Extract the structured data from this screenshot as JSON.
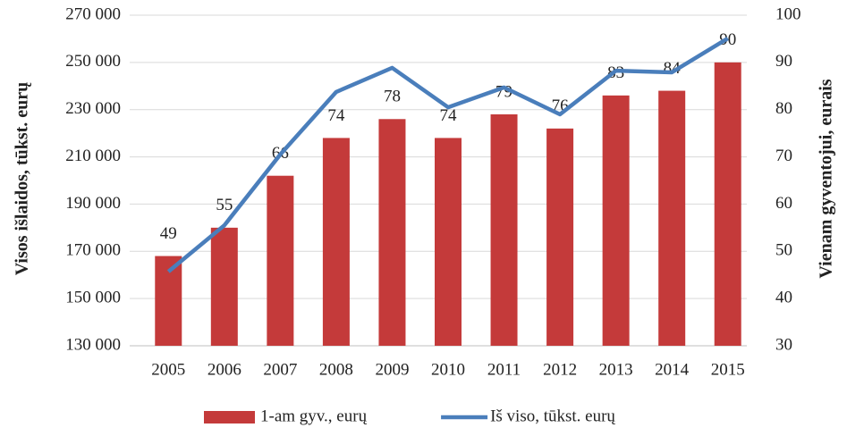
{
  "chart_data": {
    "type": "bar",
    "ylabel": "Visos išlaidos, tūkst. eurų",
    "y2label": "Vienam gyventojui, eurais",
    "categories": [
      "2005",
      "2006",
      "2007",
      "2008",
      "2009",
      "2010",
      "2011",
      "2012",
      "2013",
      "2014",
      "2015"
    ],
    "series": [
      {
        "name": "1-am gyv., eurų",
        "type": "bar",
        "axis": "y2",
        "color": "#c43a3a",
        "values": [
          49,
          55,
          66,
          74,
          78,
          74,
          79,
          76,
          83,
          84,
          90
        ]
      },
      {
        "name": "Iš viso, tūkst. eurų",
        "type": "line",
        "color": "#4a7ebb",
        "values": [
          161400,
          181000,
          211000,
          237500,
          247700,
          231000,
          239400,
          228000,
          246500,
          245800,
          260200
        ]
      }
    ],
    "ylim": [
      130000,
      270000
    ],
    "yticks": [
      {
        "value": 130000,
        "label": "130 000"
      },
      {
        "value": 150000,
        "label": "150 000"
      },
      {
        "value": 170000,
        "label": "170 000"
      },
      {
        "value": 190000,
        "label": "190 000"
      },
      {
        "value": 210000,
        "label": "210 000"
      },
      {
        "value": 230000,
        "label": "230 000"
      },
      {
        "value": 250000,
        "label": "250 000"
      },
      {
        "value": 270000,
        "label": "270 000"
      }
    ],
    "y2lim": [
      30,
      100
    ],
    "y2ticks": [
      30,
      40,
      50,
      60,
      70,
      80,
      90,
      100
    ],
    "grid": true,
    "legend": "bottom"
  }
}
